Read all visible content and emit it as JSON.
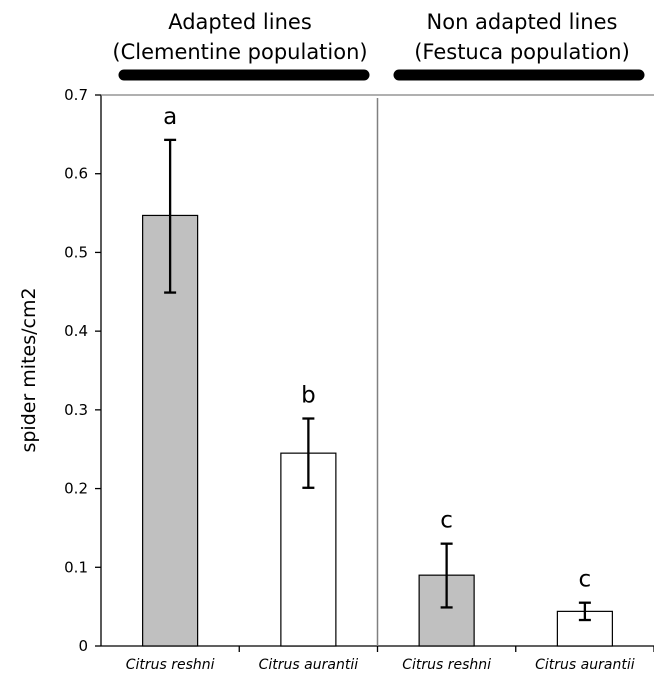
{
  "chart_data": {
    "type": "bar",
    "ylabel": "spider mites/cm2",
    "ylim": [
      0,
      0.7
    ],
    "yticks": [
      {
        "value": 0,
        "label": "0"
      },
      {
        "value": 0.1,
        "label": "0.1"
      },
      {
        "value": 0.2,
        "label": "0.2"
      },
      {
        "value": 0.3,
        "label": "0.3"
      },
      {
        "value": 0.4,
        "label": "0.4"
      },
      {
        "value": 0.5,
        "label": "0.5"
      },
      {
        "value": 0.6,
        "label": "0.6"
      },
      {
        "value": 0.7,
        "label": "0.7"
      }
    ],
    "groups": [
      {
        "title_line1": "Adapted lines",
        "title_line2": "(Clementine population)"
      },
      {
        "title_line1": "Non adapted lines",
        "title_line2": "(Festuca population)"
      }
    ],
    "bars": [
      {
        "category": "Citrus reshni",
        "value": 0.547,
        "err_low": 0.449,
        "err_high": 0.643,
        "letter": "a",
        "color": "#c0c0c0"
      },
      {
        "category": "Citrus aurantii",
        "value": 0.245,
        "err_low": 0.201,
        "err_high": 0.289,
        "letter": "b",
        "color": "#ffffff"
      },
      {
        "category": "Citrus reshni",
        "value": 0.09,
        "err_low": 0.049,
        "err_high": 0.13,
        "letter": "c",
        "color": "#c0c0c0"
      },
      {
        "category": "Citrus aurantii",
        "value": 0.044,
        "err_low": 0.033,
        "err_high": 0.055,
        "letter": "c",
        "color": "#ffffff"
      }
    ],
    "grid": false
  }
}
